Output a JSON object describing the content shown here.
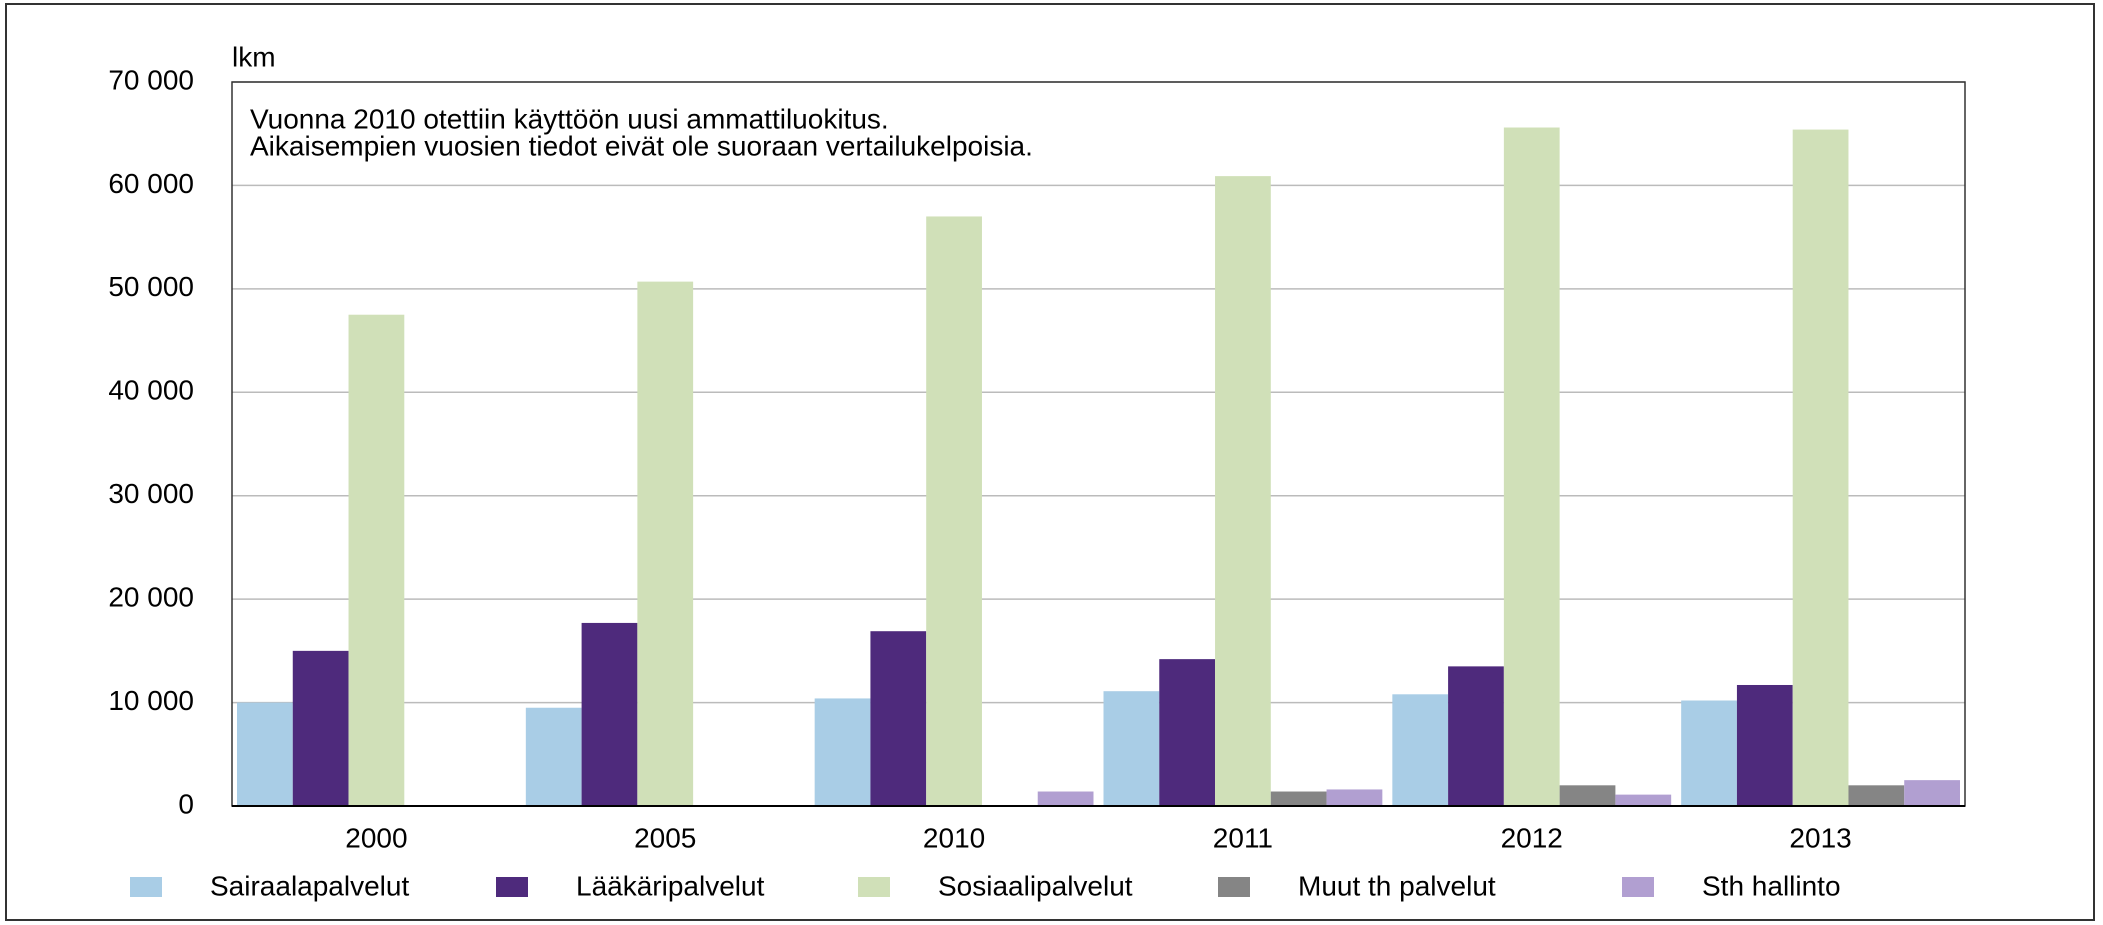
{
  "chart_data": {
    "type": "bar",
    "unit_label": "lkm",
    "annotation": [
      "Vuonna 2010 otettiin käyttöön uusi ammattiluokitus.",
      "Aikaisempien vuosien tiedot eivät ole suoraan vertailukelpoisia."
    ],
    "categories": [
      "2000",
      "2005",
      "2010",
      "2011",
      "2012",
      "2013"
    ],
    "series": [
      {
        "name": "Sairaalapalvelut",
        "color": "#a9cde6",
        "values": [
          10000,
          9500,
          10400,
          11100,
          10800,
          10200
        ]
      },
      {
        "name": "Lääkäripalvelut",
        "color": "#4e2a7c",
        "values": [
          15000,
          17700,
          16900,
          14200,
          13500,
          11700
        ]
      },
      {
        "name": "Sosiaalipalvelut",
        "color": "#d0e0b8",
        "values": [
          47500,
          50700,
          57000,
          60900,
          65600,
          65400
        ]
      },
      {
        "name": "Muut th palvelut",
        "color": "#858585",
        "values": [
          null,
          null,
          null,
          1400,
          2000,
          2000
        ]
      },
      {
        "name": "Sth hallinto",
        "color": "#b19fd1",
        "values": [
          null,
          null,
          1400,
          1600,
          1100,
          2500
        ]
      }
    ],
    "ylim": [
      0,
      70000
    ],
    "yticks": [
      0,
      {
        "value": 10000,
        "label": "10 000"
      },
      {
        "value": 20000,
        "label": "20 000"
      },
      {
        "value": 30000,
        "label": "30 000"
      },
      {
        "value": 40000,
        "label": "40 000"
      },
      {
        "value": 50000,
        "label": "50 000"
      },
      {
        "value": 60000,
        "label": "60 000"
      },
      {
        "value": 70000,
        "label": "70 000"
      }
    ],
    "grid": true,
    "legend": "bottom"
  }
}
